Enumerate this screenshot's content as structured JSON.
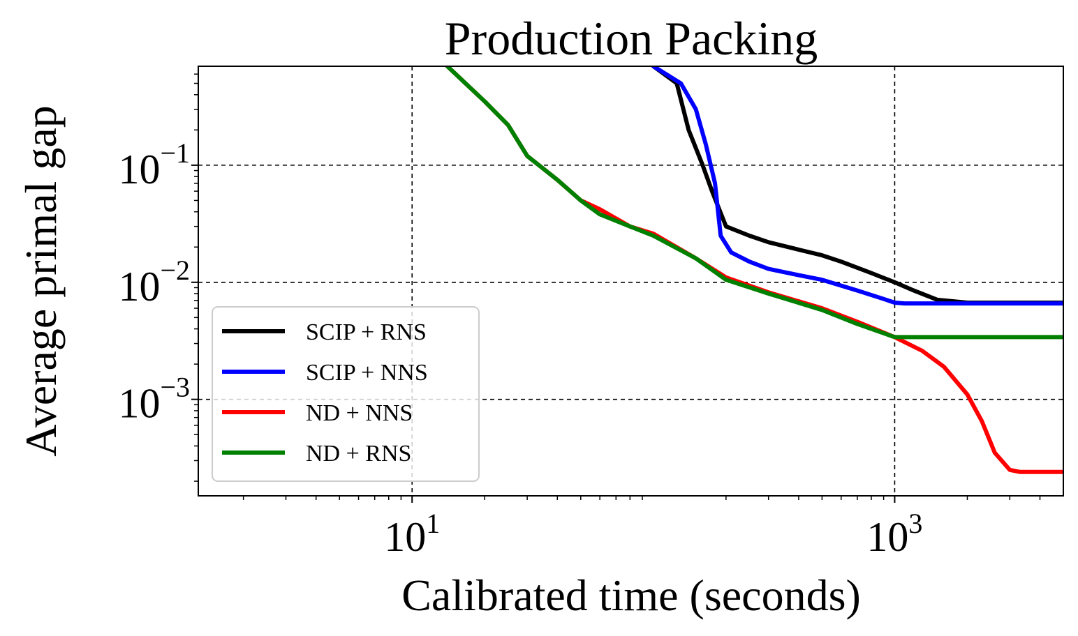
{
  "chart_data": {
    "type": "line",
    "title": "Production Packing",
    "xlabel": "Calibrated time (seconds)",
    "ylabel": "Average primal gap",
    "x_scale": "log",
    "y_scale": "log",
    "xlim": [
      1.3,
      5000
    ],
    "ylim": [
      0.00015,
      0.7
    ],
    "x_ticks": [
      {
        "value": 10,
        "base": "10",
        "exp": "1"
      },
      {
        "value": 1000,
        "base": "10",
        "exp": "3"
      }
    ],
    "y_ticks": [
      {
        "value": 0.1,
        "base": "10",
        "exp": "−1"
      },
      {
        "value": 0.01,
        "base": "10",
        "exp": "−2"
      },
      {
        "value": 0.001,
        "base": "10",
        "exp": "−3"
      }
    ],
    "grid": true,
    "legend_position": "lower-left",
    "series": [
      {
        "name": "SCIP + RNS",
        "color": "#000000",
        "x": [
          100,
          125,
          140,
          160,
          175,
          200,
          250,
          300,
          400,
          500,
          600,
          800,
          1000,
          1200,
          1500,
          2000,
          3000,
          5000
        ],
        "y": [
          0.7,
          0.5,
          0.2,
          0.1,
          0.06,
          0.03,
          0.025,
          0.022,
          0.019,
          0.017,
          0.015,
          0.012,
          0.01,
          0.0085,
          0.0071,
          0.0067,
          0.0067,
          0.0067
        ]
      },
      {
        "name": "SCIP + NNS",
        "color": "#0000ff",
        "x": [
          100,
          130,
          150,
          165,
          180,
          190,
          210,
          250,
          300,
          400,
          500,
          700,
          900,
          1000,
          1100,
          1500,
          3000,
          5000
        ],
        "y": [
          0.7,
          0.5,
          0.3,
          0.15,
          0.07,
          0.025,
          0.018,
          0.015,
          0.013,
          0.0115,
          0.0105,
          0.0085,
          0.0072,
          0.0067,
          0.0066,
          0.0066,
          0.0066,
          0.0066
        ]
      },
      {
        "name": "ND + NNS",
        "color": "#ff0000",
        "x": [
          14,
          20,
          25,
          30,
          40,
          50,
          60,
          80,
          100,
          150,
          200,
          300,
          500,
          700,
          1000,
          1300,
          1600,
          2000,
          2300,
          2600,
          3000,
          3300,
          5000
        ],
        "y": [
          0.7,
          0.35,
          0.22,
          0.12,
          0.075,
          0.05,
          0.042,
          0.03,
          0.026,
          0.016,
          0.011,
          0.0082,
          0.006,
          0.0046,
          0.0034,
          0.0026,
          0.0019,
          0.0011,
          0.00065,
          0.00035,
          0.00025,
          0.00024,
          0.00024
        ]
      },
      {
        "name": "ND + RNS",
        "color": "#008000",
        "x": [
          14,
          20,
          25,
          30,
          40,
          50,
          60,
          80,
          100,
          150,
          200,
          300,
          500,
          700,
          1000,
          1200,
          1500,
          3000,
          5000
        ],
        "y": [
          0.7,
          0.35,
          0.22,
          0.12,
          0.075,
          0.05,
          0.038,
          0.03,
          0.025,
          0.016,
          0.0105,
          0.008,
          0.0058,
          0.0044,
          0.0034,
          0.0034,
          0.0034,
          0.0034,
          0.0034
        ]
      }
    ]
  }
}
